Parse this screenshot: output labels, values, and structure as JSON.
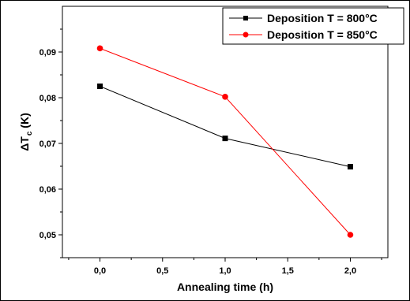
{
  "chart_data": {
    "type": "line",
    "title": "",
    "xlabel": "Annealing time (h)",
    "ylabel_main": "ΔT",
    "ylabel_sub": "c",
    "ylabel_unit": " (K)",
    "xlim": [
      -0.3,
      2.3
    ],
    "ylim": [
      0.045,
      0.1
    ],
    "x_ticks": [
      0.0,
      0.5,
      1.0,
      1.5,
      2.0
    ],
    "x_tick_labels": [
      "0,0",
      "0,5",
      "1,0",
      "1,5",
      "2,0"
    ],
    "y_ticks": [
      0.05,
      0.06,
      0.07,
      0.08,
      0.09
    ],
    "y_tick_labels": [
      "0,05",
      "0,06",
      "0,07",
      "0,08",
      "0,09"
    ],
    "grid": false,
    "legend_position": "top-right",
    "series": [
      {
        "name": "Deposition T = 800°C",
        "color": "#000000",
        "marker": "square",
        "x": [
          0.0,
          1.0,
          2.0
        ],
        "y": [
          0.0825,
          0.0711,
          0.0649
        ]
      },
      {
        "name": "Deposition T = 850°C",
        "color": "#ff0000",
        "marker": "circle",
        "x": [
          0.0,
          1.0,
          2.0
        ],
        "y": [
          0.0908,
          0.0802,
          0.05
        ]
      }
    ]
  }
}
